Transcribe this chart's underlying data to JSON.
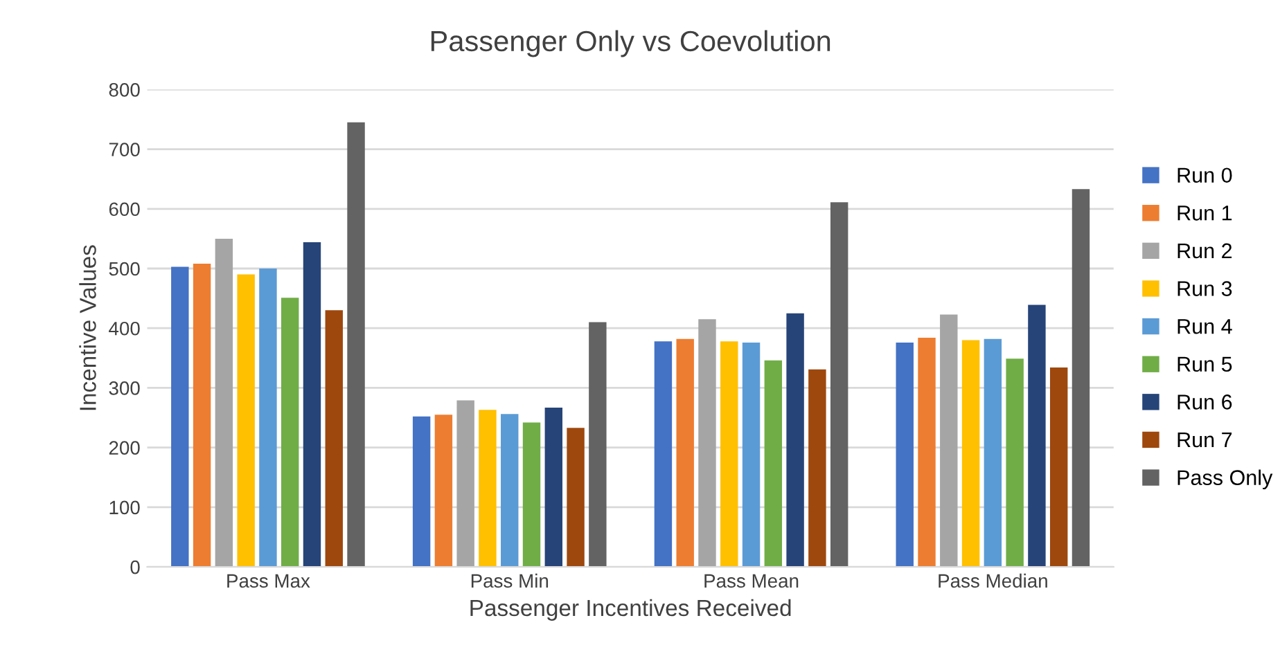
{
  "chart_data": {
    "type": "bar",
    "title": "Passenger Only vs Coevolution",
    "xlabel": "Passenger Incentives Received",
    "ylabel": "Incentive Values",
    "categories": [
      "Pass Max",
      "Pass Min",
      "Pass Mean",
      "Pass Median"
    ],
    "series": [
      {
        "name": "Run 0",
        "color": "#4472c4",
        "values": [
          503,
          252,
          378,
          376
        ]
      },
      {
        "name": "Run 1",
        "color": "#ed7d31",
        "values": [
          508,
          255,
          382,
          384
        ]
      },
      {
        "name": "Run 2",
        "color": "#a5a5a5",
        "values": [
          550,
          279,
          415,
          423
        ]
      },
      {
        "name": "Run 3",
        "color": "#ffc000",
        "values": [
          490,
          263,
          378,
          380
        ]
      },
      {
        "name": "Run 4",
        "color": "#5b9bd5",
        "values": [
          500,
          256,
          376,
          382
        ]
      },
      {
        "name": "Run 5",
        "color": "#70ad47",
        "values": [
          451,
          242,
          346,
          349
        ]
      },
      {
        "name": "Run 6",
        "color": "#264478",
        "values": [
          544,
          267,
          425,
          439
        ]
      },
      {
        "name": "Run 7",
        "color": "#9e480e",
        "values": [
          430,
          233,
          331,
          334
        ]
      },
      {
        "name": "Pass Only",
        "color": "#636363",
        "values": [
          745,
          410,
          611,
          633
        ]
      }
    ],
    "ylim": [
      0,
      800
    ],
    "yticks": [
      0,
      100,
      200,
      300,
      400,
      500,
      600,
      700,
      800
    ],
    "grid": "y",
    "legend": "right"
  }
}
